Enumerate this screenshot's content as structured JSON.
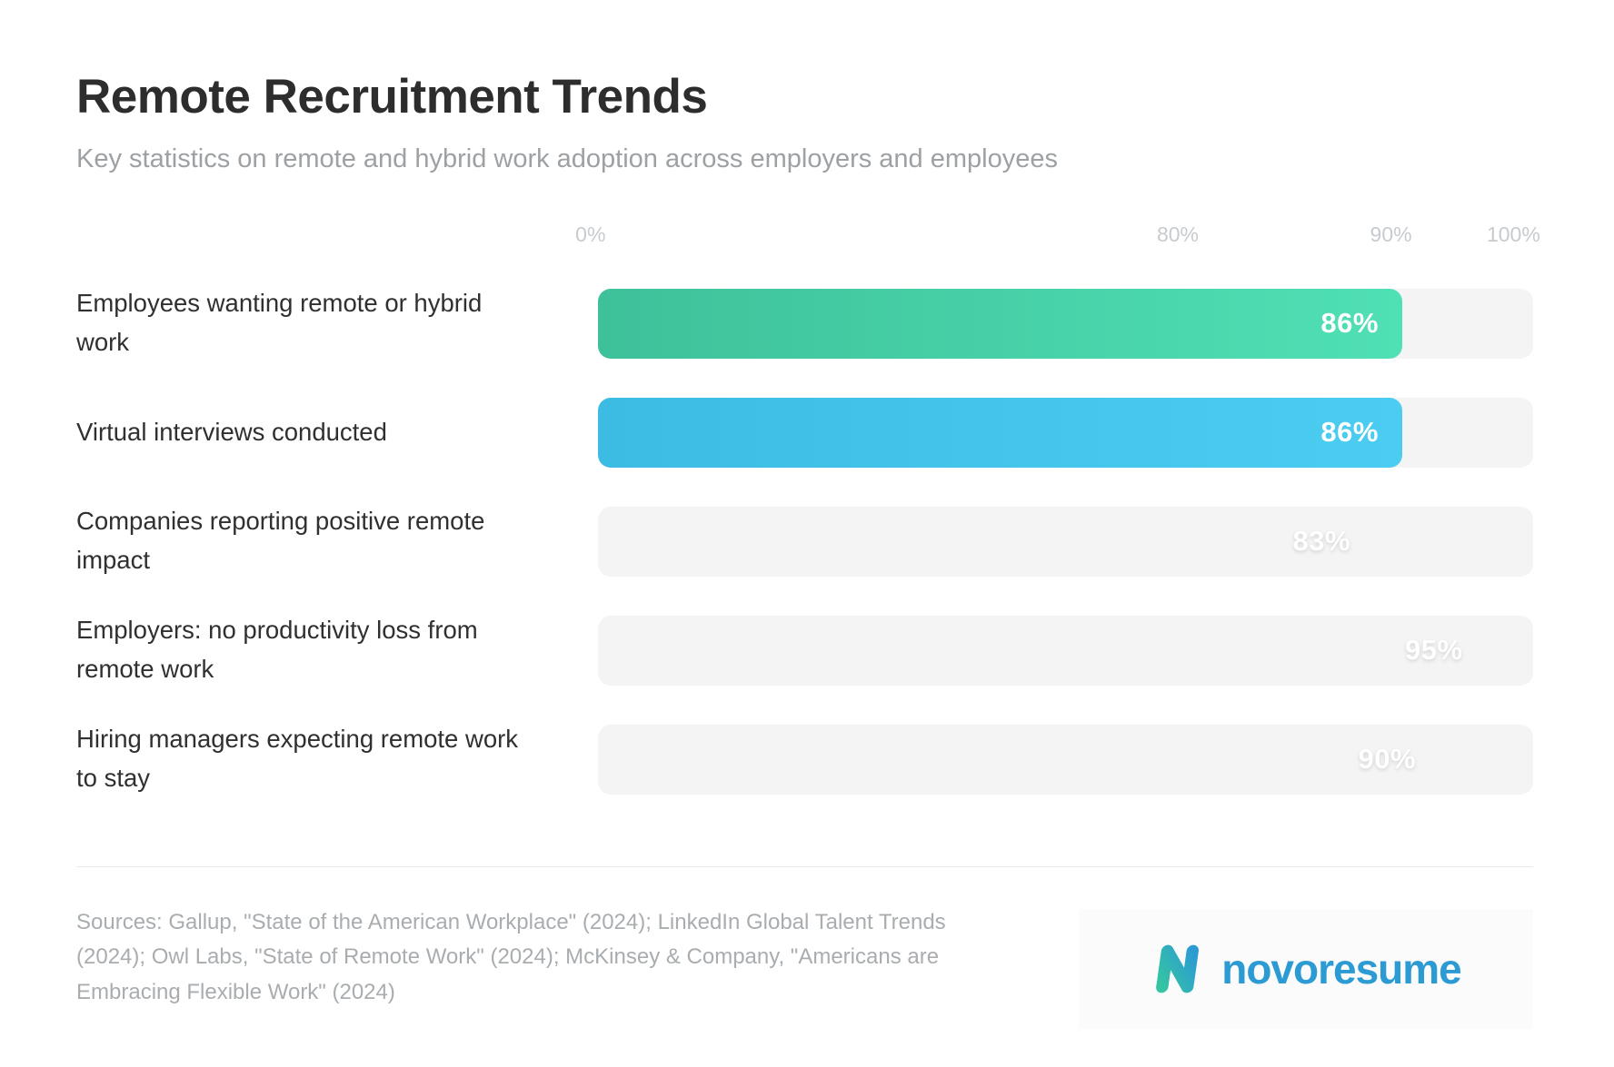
{
  "header": {
    "title": "Remote Recruitment Trends",
    "subtitle": "Key statistics on remote and hybrid work adoption across employers and employees"
  },
  "chart_data": {
    "type": "bar",
    "orientation": "horizontal",
    "xlim": [
      0,
      100
    ],
    "axis_ticks": [
      {
        "label": "0%",
        "pos": -0.8
      },
      {
        "label": "80%",
        "pos": 62.0
      },
      {
        "label": "90%",
        "pos": 84.8
      },
      {
        "label": "100%",
        "pos": 97.9
      }
    ],
    "categories": [
      "Employees wanting remote or hybrid work",
      "Virtual interviews conducted",
      "Companies reporting positive remote impact",
      "Employers: no productivity loss from remote work",
      "Hiring managers expecting remote work to stay"
    ],
    "values": [
      86,
      86,
      83,
      95,
      90
    ],
    "value_labels": [
      "86%",
      "86%",
      "83%",
      "95%",
      "90%"
    ],
    "filled": [
      true,
      true,
      false,
      false,
      false
    ],
    "gradients": [
      [
        "#3ec19a",
        "#50e0b5"
      ],
      [
        "#3cbce2",
        "#4bcdf2"
      ],
      null,
      null,
      null
    ],
    "track_color": "#f4f4f5"
  },
  "footer": {
    "sources": "Sources: Gallup, \"State of the American Workplace\" (2024); LinkedIn Global Talent Trends (2024); Owl Labs, \"State of Remote Work\" (2024); McKinsey & Company, \"Americans are Embracing Flexible Work\" (2024)",
    "logo_text": "novoresume"
  },
  "colors": {
    "title": "#2d2d2d",
    "subtitle": "#9da1a4",
    "axis_label": "#c7cbd0",
    "row_label": "#303030",
    "bar_value": "#ffffff",
    "logo_blue": "#2c9bd3",
    "logo_teal": "#35c4a2",
    "divider": "#e9e9ea"
  }
}
